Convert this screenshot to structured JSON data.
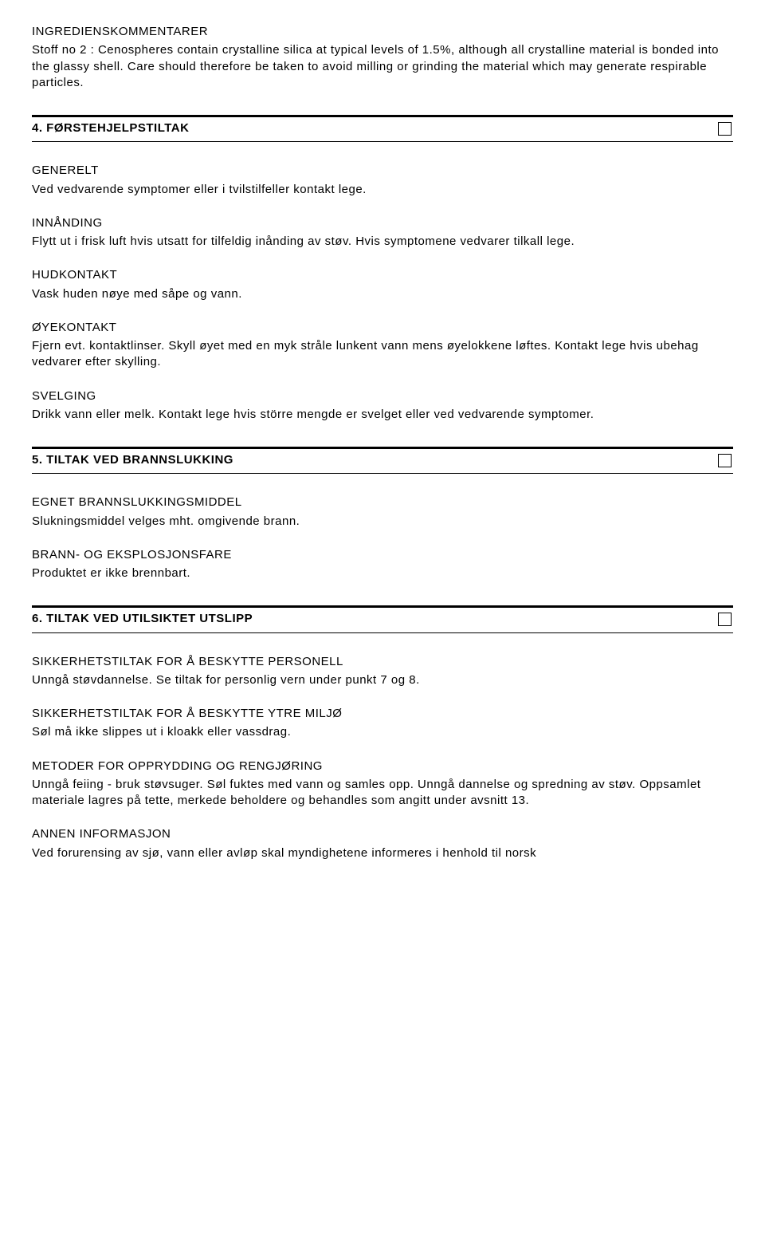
{
  "ingredients": {
    "heading": "INGREDIENSKOMMENTARER",
    "body": "Stoff no 2 : Cenospheres contain crystalline silica at typical levels of 1.5%, although all crystalline material is bonded into the glassy shell. Care should therefore be taken to avoid milling or grinding the material which may generate respirable particles."
  },
  "section4": {
    "title": "4. FØRSTEHJELPSTILTAK",
    "generelt": {
      "heading": "GENERELT",
      "body": "Ved vedvarende symptomer eller i tvilstilfeller kontakt lege."
    },
    "innanding": {
      "heading": "INNÅNDING",
      "body": "Flytt ut i frisk luft hvis utsatt for tilfeldig inånding av støv. Hvis symptomene vedvarer tilkall lege."
    },
    "hudkontakt": {
      "heading": "HUDKONTAKT",
      "body": "Vask huden nøye med såpe og vann."
    },
    "oyekontakt": {
      "heading": "ØYEKONTAKT",
      "body": "Fjern evt. kontaktlinser. Skyll øyet med en myk stråle lunkent vann mens øyelokkene løftes. Kontakt lege hvis ubehag vedvarer efter skylling."
    },
    "svelging": {
      "heading": "SVELGING",
      "body": "Drikk vann eller melk. Kontakt lege hvis större mengde er svelget eller ved vedvarende symptomer."
    }
  },
  "section5": {
    "title": "5. TILTAK VED BRANNSLUKKING",
    "egnet": {
      "heading": "EGNET BRANNSLUKKINGSMIDDEL",
      "body": "Slukningsmiddel velges mht. omgivende brann."
    },
    "brann": {
      "heading": "BRANN- OG EKSPLOSJONSFARE",
      "body": "Produktet er ikke brennbart."
    }
  },
  "section6": {
    "title": "6. TILTAK VED UTILSIKTET UTSLIPP",
    "personell": {
      "heading": "SIKKERHETSTILTAK FOR Å BESKYTTE PERSONELL",
      "body": "Unngå støvdannelse. Se tiltak for personlig vern under punkt 7 og 8."
    },
    "miljo": {
      "heading": "SIKKERHETSTILTAK FOR Å BESKYTTE YTRE MILJØ",
      "body": "Søl må ikke slippes ut i kloakk eller vassdrag."
    },
    "metoder": {
      "heading": "METODER FOR OPPRYDDING OG RENGJØRING",
      "body": "Unngå feiing - bruk støvsuger. Søl fuktes med vann og samles opp. Unngå dannelse og spredning av støv. Oppsamlet materiale lagres på tette, merkede beholdere og behandles som angitt under avsnitt 13."
    },
    "annen": {
      "heading": "ANNEN INFORMASJON",
      "body": "Ved forurensing av sjø, vann eller avløp skal myndighetene informeres i henhold til norsk"
    }
  }
}
